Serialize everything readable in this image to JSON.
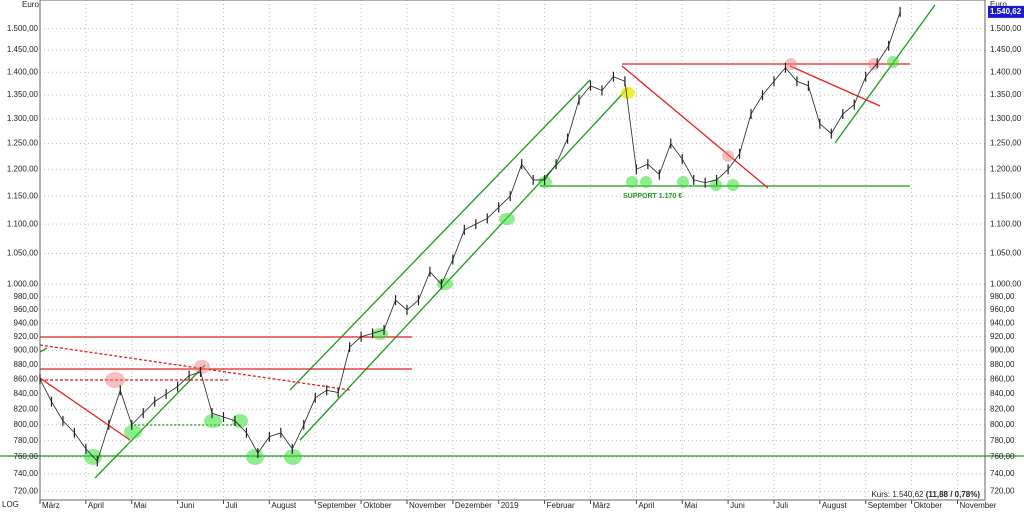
{
  "chart_data": {
    "type": "price",
    "y_unit": "Euro",
    "scale_label": "LOG",
    "log_scale": true,
    "grid": true,
    "color": "#222222",
    "last_price": 1540.62,
    "last_price_label": "1.540,62",
    "quote": {
      "label": "Kurs:",
      "price": "1.540,62",
      "change": "(11,88 / 0,78%)"
    },
    "support_label": "SUPPORT 1.170 €",
    "xlim": [
      0,
      20.6
    ],
    "xticks": [
      {
        "value": 0,
        "label": "März"
      },
      {
        "value": 1,
        "label": "April"
      },
      {
        "value": 2,
        "label": "Mai"
      },
      {
        "value": 3,
        "label": "Juni"
      },
      {
        "value": 4,
        "label": "Juli"
      },
      {
        "value": 5,
        "label": "August"
      },
      {
        "value": 6,
        "label": "September"
      },
      {
        "value": 7,
        "label": "Oktober"
      },
      {
        "value": 8,
        "label": "November"
      },
      {
        "value": 9,
        "label": "Dezember"
      },
      {
        "value": 10,
        "label": "2019"
      },
      {
        "value": 11,
        "label": "Februar"
      },
      {
        "value": 12,
        "label": "März"
      },
      {
        "value": 13,
        "label": "April"
      },
      {
        "value": 14,
        "label": "Mai"
      },
      {
        "value": 15,
        "label": "Juni"
      },
      {
        "value": 16,
        "label": "Juli"
      },
      {
        "value": 17,
        "label": "August"
      },
      {
        "value": 18,
        "label": "September"
      },
      {
        "value": 19,
        "label": "Oktober"
      },
      {
        "value": 20,
        "label": "November"
      }
    ],
    "ylim": [
      710,
      1570
    ],
    "yticks": [
      {
        "value": 720,
        "label": "720,00"
      },
      {
        "value": 740,
        "label": "740,00"
      },
      {
        "value": 760,
        "label": "760,00"
      },
      {
        "value": 780,
        "label": "780,00"
      },
      {
        "value": 800,
        "label": "800,00"
      },
      {
        "value": 820,
        "label": "820,00"
      },
      {
        "value": 840,
        "label": "840,00"
      },
      {
        "value": 860,
        "label": "860,00"
      },
      {
        "value": 880,
        "label": "880,00"
      },
      {
        "value": 900,
        "label": "900,00"
      },
      {
        "value": 920,
        "label": "920,00"
      },
      {
        "value": 940,
        "label": "940,00"
      },
      {
        "value": 960,
        "label": "960,00"
      },
      {
        "value": 980,
        "label": "980,00"
      },
      {
        "value": 1000,
        "label": "1.000,00"
      },
      {
        "value": 1050,
        "label": "1.050,00"
      },
      {
        "value": 1100,
        "label": "1.100,00"
      },
      {
        "value": 1150,
        "label": "1.150,00"
      },
      {
        "value": 1200,
        "label": "1.200,00"
      },
      {
        "value": 1250,
        "label": "1.250,00"
      },
      {
        "value": 1300,
        "label": "1.300,00"
      },
      {
        "value": 1350,
        "label": "1.350,00"
      },
      {
        "value": 1400,
        "label": "1.400,00"
      },
      {
        "value": 1450,
        "label": "1.450,00"
      },
      {
        "value": 1500,
        "label": "1.500,00"
      }
    ],
    "x": [
      0,
      0.25,
      0.5,
      0.75,
      1,
      1.25,
      1.5,
      1.75,
      2,
      2.25,
      2.5,
      2.75,
      3,
      3.25,
      3.5,
      3.75,
      4,
      4.25,
      4.5,
      4.75,
      5,
      5.25,
      5.5,
      5.75,
      6,
      6.25,
      6.5,
      6.75,
      7,
      7.25,
      7.5,
      7.75,
      8,
      8.25,
      8.5,
      8.75,
      9,
      9.25,
      9.5,
      9.75,
      10,
      10.25,
      10.5,
      10.75,
      11,
      11.25,
      11.5,
      11.75,
      12,
      12.25,
      12.5,
      12.75,
      13,
      13.25,
      13.5,
      13.75,
      14,
      14.25,
      14.5,
      14.75,
      15,
      15.25,
      15.5,
      15.75,
      16,
      16.25,
      16.5,
      16.75,
      17,
      17.25,
      17.5,
      17.75,
      18,
      18.25,
      18.5,
      18.75
    ],
    "values": [
      860,
      830,
      805,
      790,
      770,
      755,
      800,
      845,
      800,
      815,
      830,
      840,
      850,
      865,
      870,
      815,
      810,
      805,
      790,
      765,
      785,
      790,
      770,
      800,
      835,
      845,
      842,
      905,
      920,
      925,
      930,
      975,
      960,
      975,
      1020,
      1000,
      1040,
      1090,
      1100,
      1110,
      1130,
      1150,
      1210,
      1180,
      1180,
      1210,
      1260,
      1340,
      1370,
      1360,
      1390,
      1380,
      1200,
      1210,
      1190,
      1250,
      1220,
      1180,
      1175,
      1180,
      1200,
      1230,
      1310,
      1350,
      1380,
      1410,
      1380,
      1370,
      1290,
      1270,
      1310,
      1330,
      1390,
      1420,
      1460,
      1540.62
    ]
  }
}
